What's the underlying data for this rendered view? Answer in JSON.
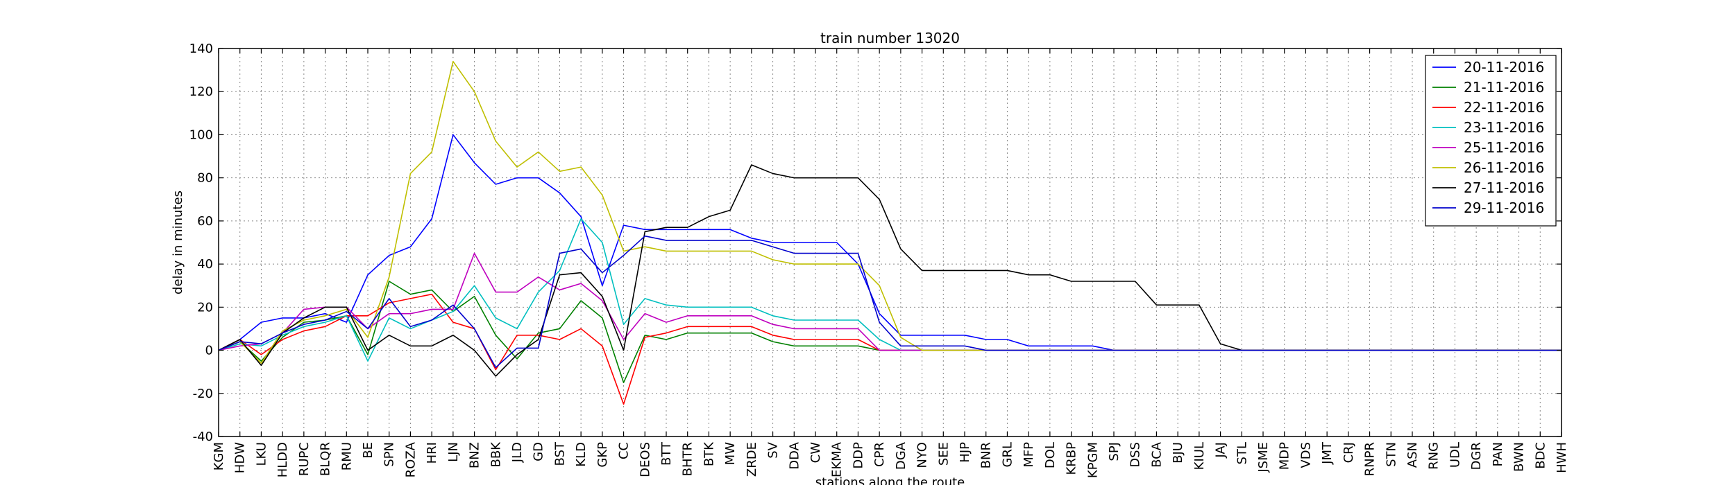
{
  "chart_data": {
    "type": "line",
    "title": "train number 13020",
    "xlabel": "stations along the route",
    "ylabel": "delay in minutes",
    "ylim": [
      -40,
      140
    ],
    "yticks": [
      -40,
      -20,
      0,
      20,
      40,
      60,
      80,
      100,
      120,
      140
    ],
    "grid": true,
    "legend_position": "top-right",
    "categories": [
      "KGM",
      "HDW",
      "LKU",
      "HLDD",
      "RUPC",
      "BLQR",
      "RMU",
      "BE",
      "SPN",
      "ROZA",
      "HRI",
      "LJN",
      "BNZ",
      "BBK",
      "JLD",
      "GD",
      "BST",
      "KLD",
      "GKP",
      "CC",
      "DEOS",
      "BTT",
      "BHTR",
      "BTK",
      "MW",
      "ZRDE",
      "SV",
      "DDA",
      "CW",
      "EKMA",
      "DDP",
      "CPR",
      "DGA",
      "NYO",
      "SEE",
      "HJP",
      "BNR",
      "GRL",
      "MFP",
      "DOL",
      "KRBP",
      "KPGM",
      "SPJ",
      "DSS",
      "BCA",
      "BJU",
      "KIUL",
      "JAJ",
      "STL",
      "JSME",
      "MDP",
      "VDS",
      "JMT",
      "CRJ",
      "RNPR",
      "STN",
      "ASN",
      "RNG",
      "UDL",
      "DGR",
      "PAN",
      "BWN",
      "BDC",
      "HWH"
    ],
    "series": [
      {
        "name": "20-11-2016",
        "color": "#0000ff",
        "values": [
          0,
          5,
          13,
          15,
          15,
          17,
          13,
          35,
          44,
          48,
          61,
          100,
          87,
          77,
          80,
          80,
          73,
          62,
          30,
          58,
          56,
          56,
          56,
          56,
          56,
          52,
          50,
          50,
          50,
          50,
          40,
          17,
          7,
          7,
          7,
          7,
          5,
          5,
          2,
          2,
          2,
          2,
          0,
          0,
          0,
          0,
          0,
          0,
          0,
          0,
          0,
          0,
          0,
          0,
          0,
          0,
          0,
          0,
          0,
          0,
          0,
          0,
          0,
          0
        ]
      },
      {
        "name": "21-11-2016",
        "color": "#008000",
        "values": [
          0,
          4,
          -5,
          6,
          13,
          14,
          16,
          -2,
          32,
          26,
          28,
          18,
          25,
          7,
          -4,
          8,
          10,
          23,
          15,
          -15,
          7,
          5,
          8,
          8,
          8,
          8,
          4,
          2,
          2,
          2,
          2,
          0,
          0,
          0,
          0,
          0,
          0,
          0,
          0,
          0,
          0,
          0,
          0,
          0,
          0,
          0,
          0,
          0,
          0,
          0,
          0,
          0,
          0,
          0,
          0,
          0,
          0,
          0,
          0,
          0,
          0,
          0,
          0,
          0
        ]
      },
      {
        "name": "22-11-2016",
        "color": "#ff0000",
        "values": [
          0,
          5,
          -2,
          5,
          9,
          11,
          16,
          16,
          22,
          24,
          26,
          13,
          10,
          -9,
          7,
          7,
          5,
          10,
          2,
          -25,
          6,
          8,
          11,
          11,
          11,
          11,
          7,
          5,
          5,
          5,
          5,
          0,
          0,
          0,
          0,
          0,
          0,
          0,
          0,
          0,
          0,
          0,
          0,
          0,
          0,
          0,
          0,
          0,
          0,
          0,
          0,
          0,
          0,
          0,
          0,
          0,
          0,
          0,
          0,
          0,
          0,
          0,
          0,
          0
        ]
      },
      {
        "name": "23-11-2016",
        "color": "#00bfbf",
        "values": [
          0,
          3,
          2,
          7,
          11,
          13,
          16,
          -5,
          15,
          10,
          14,
          18,
          30,
          15,
          10,
          27,
          37,
          61,
          50,
          12,
          24,
          21,
          20,
          20,
          20,
          20,
          16,
          14,
          14,
          14,
          14,
          5,
          0,
          0,
          0,
          0,
          0,
          0,
          0,
          0,
          0,
          0,
          0,
          0,
          0,
          0,
          0,
          0,
          0,
          0,
          0,
          0,
          0,
          0,
          0,
          0,
          0,
          0,
          0,
          0,
          0,
          0,
          0,
          0
        ]
      },
      {
        "name": "25-11-2016",
        "color": "#bf00bf",
        "values": [
          0,
          2,
          3,
          8,
          19,
          20,
          20,
          10,
          17,
          17,
          19,
          19,
          45,
          27,
          27,
          34,
          28,
          31,
          23,
          5,
          17,
          13,
          16,
          16,
          16,
          16,
          12,
          10,
          10,
          10,
          10,
          0,
          0,
          0,
          0,
          0,
          0,
          0,
          0,
          0,
          0,
          0,
          0,
          0,
          0,
          0,
          0,
          0,
          0,
          0,
          0,
          0,
          0,
          0,
          0,
          0,
          0,
          0,
          0,
          0,
          0,
          0,
          0,
          0
        ]
      },
      {
        "name": "26-11-2016",
        "color": "#bfbf00",
        "values": [
          0,
          4,
          -6,
          9,
          14,
          16,
          19,
          6,
          34,
          82,
          92,
          134,
          120,
          97,
          85,
          92,
          83,
          85,
          72,
          46,
          48,
          46,
          46,
          46,
          46,
          46,
          42,
          40,
          40,
          40,
          40,
          30,
          6,
          0,
          0,
          0,
          0,
          0,
          0,
          0,
          0,
          0,
          0,
          0,
          0,
          0,
          0,
          0,
          0,
          0,
          0,
          0,
          0,
          0,
          0,
          0,
          0,
          0,
          0,
          0,
          0,
          0,
          0,
          0
        ]
      },
      {
        "name": "27-11-2016",
        "color": "#000000",
        "values": [
          0,
          5,
          -7,
          8,
          15,
          20,
          20,
          0,
          7,
          2,
          2,
          7,
          0,
          -12,
          -2,
          5,
          35,
          36,
          25,
          0,
          55,
          57,
          57,
          62,
          65,
          86,
          82,
          80,
          80,
          80,
          80,
          70,
          47,
          37,
          37,
          37,
          37,
          37,
          35,
          35,
          32,
          32,
          32,
          32,
          21,
          21,
          21,
          3,
          0,
          0,
          0,
          0,
          0,
          0,
          0,
          0,
          0,
          0,
          0,
          0,
          0,
          0,
          0,
          0
        ]
      },
      {
        "name": "29-11-2016",
        "color": "#0000cc",
        "values": [
          0,
          4,
          3,
          8,
          12,
          14,
          18,
          10,
          24,
          11,
          14,
          21,
          10,
          -8,
          1,
          1,
          45,
          47,
          36,
          44,
          53,
          51,
          51,
          51,
          51,
          51,
          48,
          45,
          45,
          45,
          45,
          13,
          2,
          2,
          2,
          2,
          0,
          0,
          0,
          0,
          0,
          0,
          0,
          0,
          0,
          0,
          0,
          0,
          0,
          0,
          0,
          0,
          0,
          0,
          0,
          0,
          0,
          0,
          0,
          0,
          0,
          0,
          0,
          0
        ]
      }
    ]
  }
}
